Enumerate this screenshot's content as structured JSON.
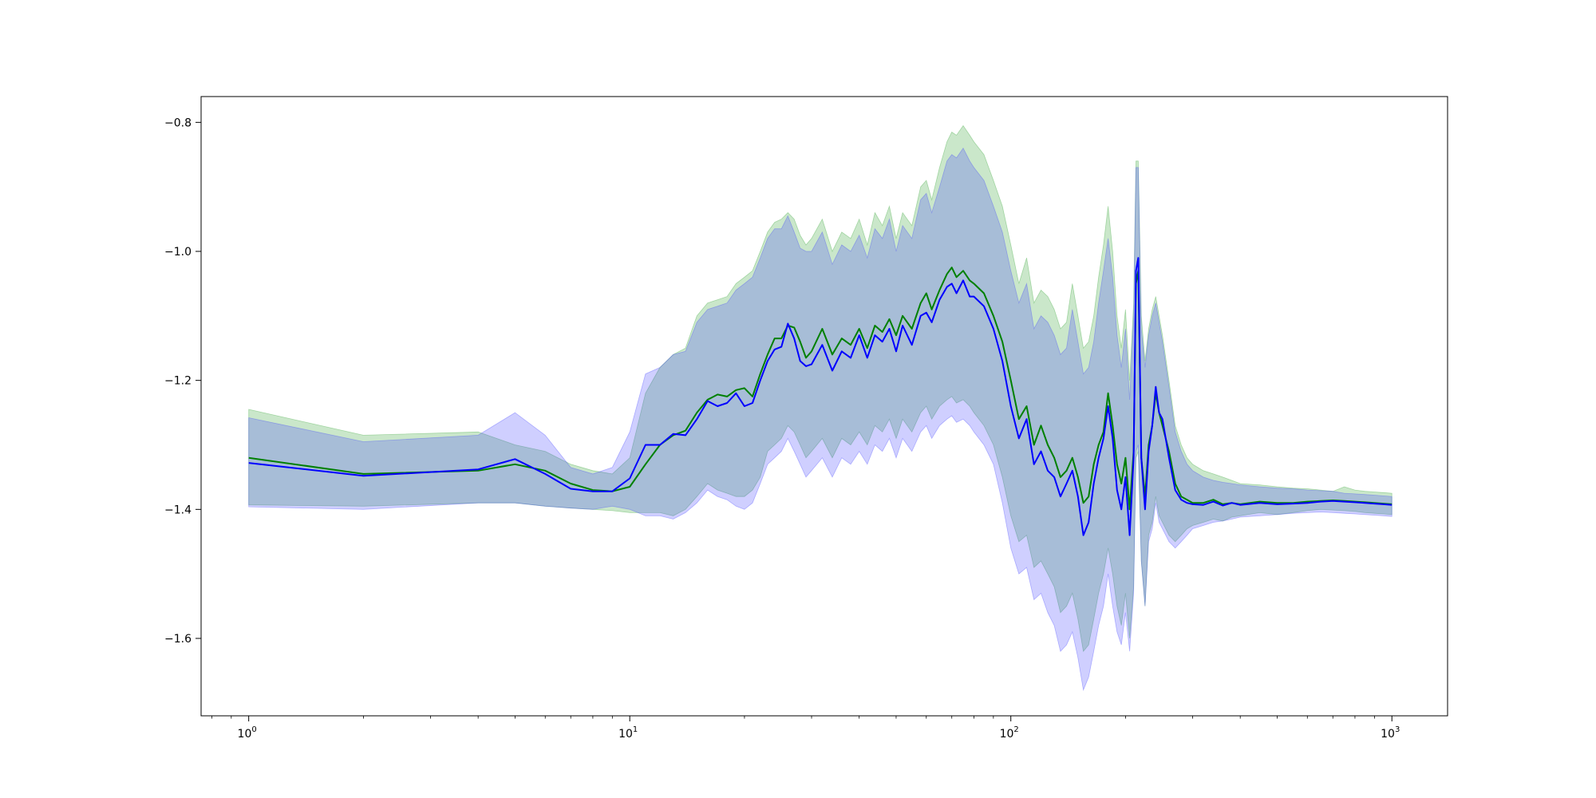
{
  "chart_data": {
    "type": "line",
    "title": "",
    "xlabel": "",
    "ylabel": "",
    "xscale": "log",
    "xlim": [
      0.75,
      1400
    ],
    "ylim": [
      -1.72,
      -0.76
    ],
    "grid": false,
    "x_ticks": [
      {
        "value": 1,
        "base": "10",
        "exp": "0"
      },
      {
        "value": 10,
        "base": "10",
        "exp": "1"
      },
      {
        "value": 100,
        "base": "10",
        "exp": "2"
      },
      {
        "value": 1000,
        "base": "10",
        "exp": "3"
      }
    ],
    "y_ticks": [
      {
        "value": -1.6,
        "label": "−1.6"
      },
      {
        "value": -1.4,
        "label": "−1.4"
      },
      {
        "value": -1.2,
        "label": "−1.2"
      },
      {
        "value": -1.0,
        "label": "−1.0"
      },
      {
        "value": -0.8,
        "label": "−0.8"
      }
    ],
    "colors": {
      "green_line": "#008000",
      "green_band": "#2ca02c",
      "blue_line": "#0000ff",
      "blue_band": "#4040ff",
      "band_opacity": 0.25
    },
    "series": [
      {
        "color_key": "green",
        "x": [
          1,
          2,
          4,
          5,
          6,
          7,
          8,
          9,
          10,
          11,
          12,
          13,
          14,
          15,
          16,
          17,
          18,
          19,
          20,
          21,
          22,
          23,
          24,
          25,
          26,
          27,
          28,
          29,
          30,
          32,
          34,
          36,
          38,
          40,
          42,
          44,
          46,
          48,
          50,
          52,
          55,
          58,
          60,
          62,
          65,
          68,
          70,
          72,
          75,
          78,
          80,
          85,
          90,
          95,
          100,
          105,
          110,
          115,
          120,
          125,
          130,
          135,
          140,
          145,
          150,
          155,
          160,
          165,
          170,
          175,
          180,
          185,
          190,
          195,
          200,
          205,
          210,
          213,
          216,
          220,
          225,
          230,
          235,
          240,
          245,
          250,
          260,
          270,
          280,
          290,
          300,
          320,
          340,
          360,
          380,
          400,
          450,
          500,
          550,
          600,
          650,
          700,
          750,
          800,
          850,
          900,
          950,
          1000
        ],
        "y": [
          -1.32,
          -1.345,
          -1.34,
          -1.33,
          -1.34,
          -1.36,
          -1.37,
          -1.372,
          -1.365,
          -1.33,
          -1.3,
          -1.285,
          -1.278,
          -1.25,
          -1.23,
          -1.222,
          -1.225,
          -1.215,
          -1.212,
          -1.225,
          -1.19,
          -1.16,
          -1.135,
          -1.135,
          -1.115,
          -1.118,
          -1.14,
          -1.165,
          -1.155,
          -1.12,
          -1.16,
          -1.135,
          -1.145,
          -1.12,
          -1.15,
          -1.115,
          -1.125,
          -1.105,
          -1.13,
          -1.1,
          -1.12,
          -1.08,
          -1.065,
          -1.09,
          -1.06,
          -1.035,
          -1.025,
          -1.04,
          -1.03,
          -1.045,
          -1.05,
          -1.065,
          -1.1,
          -1.14,
          -1.2,
          -1.26,
          -1.24,
          -1.3,
          -1.27,
          -1.3,
          -1.32,
          -1.35,
          -1.34,
          -1.32,
          -1.35,
          -1.39,
          -1.38,
          -1.33,
          -1.3,
          -1.28,
          -1.22,
          -1.27,
          -1.33,
          -1.36,
          -1.32,
          -1.4,
          -1.31,
          -1.05,
          -1.03,
          -1.32,
          -1.38,
          -1.3,
          -1.27,
          -1.22,
          -1.25,
          -1.27,
          -1.31,
          -1.36,
          -1.38,
          -1.385,
          -1.39,
          -1.39,
          -1.385,
          -1.392,
          -1.39,
          -1.392,
          -1.388,
          -1.39,
          -1.39,
          -1.388,
          -1.387,
          -1.386,
          -1.387,
          -1.388,
          -1.389,
          -1.39,
          -1.391,
          -1.392
        ]
      },
      {
        "color_key": "blue",
        "x": [
          1,
          2,
          4,
          5,
          6,
          7,
          8,
          9,
          10,
          11,
          12,
          13,
          14,
          15,
          16,
          17,
          18,
          19,
          20,
          21,
          22,
          23,
          24,
          25,
          26,
          27,
          28,
          29,
          30,
          32,
          34,
          36,
          38,
          40,
          42,
          44,
          46,
          48,
          50,
          52,
          55,
          58,
          60,
          62,
          65,
          68,
          70,
          72,
          75,
          78,
          80,
          85,
          90,
          95,
          100,
          105,
          110,
          115,
          120,
          125,
          130,
          135,
          140,
          145,
          150,
          155,
          160,
          165,
          170,
          175,
          180,
          185,
          190,
          195,
          200,
          205,
          210,
          213,
          216,
          220,
          225,
          230,
          235,
          240,
          245,
          250,
          260,
          270,
          280,
          290,
          300,
          320,
          340,
          360,
          380,
          400,
          450,
          500,
          550,
          600,
          650,
          700,
          750,
          800,
          850,
          900,
          950,
          1000
        ],
        "y": [
          -1.328,
          -1.348,
          -1.338,
          -1.322,
          -1.345,
          -1.368,
          -1.372,
          -1.372,
          -1.352,
          -1.3,
          -1.3,
          -1.283,
          -1.285,
          -1.26,
          -1.232,
          -1.24,
          -1.235,
          -1.22,
          -1.24,
          -1.235,
          -1.2,
          -1.17,
          -1.152,
          -1.148,
          -1.112,
          -1.135,
          -1.17,
          -1.178,
          -1.175,
          -1.145,
          -1.185,
          -1.155,
          -1.165,
          -1.13,
          -1.165,
          -1.13,
          -1.14,
          -1.12,
          -1.155,
          -1.115,
          -1.145,
          -1.1,
          -1.095,
          -1.11,
          -1.075,
          -1.055,
          -1.05,
          -1.065,
          -1.045,
          -1.07,
          -1.07,
          -1.085,
          -1.12,
          -1.17,
          -1.24,
          -1.29,
          -1.26,
          -1.33,
          -1.31,
          -1.34,
          -1.35,
          -1.38,
          -1.36,
          -1.34,
          -1.38,
          -1.44,
          -1.42,
          -1.36,
          -1.32,
          -1.29,
          -1.24,
          -1.29,
          -1.37,
          -1.4,
          -1.35,
          -1.44,
          -1.32,
          -1.03,
          -1.01,
          -1.32,
          -1.4,
          -1.31,
          -1.27,
          -1.21,
          -1.25,
          -1.26,
          -1.32,
          -1.37,
          -1.385,
          -1.39,
          -1.392,
          -1.393,
          -1.388,
          -1.394,
          -1.39,
          -1.393,
          -1.39,
          -1.392,
          -1.391,
          -1.39,
          -1.388,
          -1.387,
          -1.388,
          -1.389,
          -1.39,
          -1.391,
          -1.392,
          -1.393
        ]
      },
      {
        "color_key": "green_band",
        "x": [
          1,
          2,
          4,
          5,
          6,
          7,
          8,
          9,
          10,
          11,
          12,
          13,
          14,
          15,
          16,
          17,
          18,
          19,
          20,
          21,
          22,
          23,
          24,
          25,
          26,
          27,
          28,
          29,
          30,
          32,
          34,
          36,
          38,
          40,
          42,
          44,
          46,
          48,
          50,
          52,
          55,
          58,
          60,
          62,
          65,
          68,
          70,
          72,
          75,
          78,
          80,
          85,
          90,
          95,
          100,
          105,
          110,
          115,
          120,
          125,
          130,
          135,
          140,
          145,
          150,
          155,
          160,
          165,
          170,
          175,
          180,
          185,
          190,
          195,
          200,
          205,
          210,
          213,
          216,
          220,
          225,
          230,
          235,
          240,
          245,
          250,
          260,
          270,
          280,
          290,
          300,
          320,
          340,
          360,
          380,
          400,
          450,
          500,
          550,
          600,
          650,
          700,
          750,
          800,
          850,
          900,
          950,
          1000
        ],
        "upper": [
          -1.245,
          -1.285,
          -1.28,
          -1.3,
          -1.31,
          -1.33,
          -1.34,
          -1.345,
          -1.32,
          -1.22,
          -1.18,
          -1.16,
          -1.15,
          -1.1,
          -1.08,
          -1.075,
          -1.07,
          -1.05,
          -1.04,
          -1.03,
          -1.0,
          -0.97,
          -0.955,
          -0.95,
          -0.94,
          -0.95,
          -0.975,
          -0.99,
          -0.98,
          -0.95,
          -1.0,
          -0.97,
          -0.98,
          -0.95,
          -0.99,
          -0.94,
          -0.96,
          -0.93,
          -0.98,
          -0.94,
          -0.96,
          -0.9,
          -0.89,
          -0.92,
          -0.87,
          -0.83,
          -0.815,
          -0.82,
          -0.805,
          -0.82,
          -0.83,
          -0.85,
          -0.89,
          -0.93,
          -0.99,
          -1.05,
          -1.01,
          -1.08,
          -1.06,
          -1.07,
          -1.09,
          -1.12,
          -1.11,
          -1.05,
          -1.1,
          -1.15,
          -1.14,
          -1.1,
          -1.04,
          -0.99,
          -0.93,
          -1.0,
          -1.1,
          -1.15,
          -1.09,
          -1.2,
          -1.08,
          -0.86,
          -0.86,
          -1.1,
          -1.17,
          -1.12,
          -1.09,
          -1.07,
          -1.1,
          -1.13,
          -1.2,
          -1.27,
          -1.3,
          -1.32,
          -1.33,
          -1.34,
          -1.345,
          -1.35,
          -1.355,
          -1.36,
          -1.362,
          -1.365,
          -1.367,
          -1.368,
          -1.37,
          -1.372,
          -1.365,
          -1.37,
          -1.372,
          -1.373,
          -1.374,
          -1.375
        ],
        "lower": [
          -1.393,
          -1.395,
          -1.39,
          -1.39,
          -1.395,
          -1.398,
          -1.4,
          -1.402,
          -1.405,
          -1.405,
          -1.405,
          -1.41,
          -1.4,
          -1.38,
          -1.36,
          -1.37,
          -1.375,
          -1.38,
          -1.38,
          -1.37,
          -1.35,
          -1.31,
          -1.3,
          -1.29,
          -1.27,
          -1.28,
          -1.3,
          -1.32,
          -1.31,
          -1.29,
          -1.32,
          -1.29,
          -1.3,
          -1.28,
          -1.3,
          -1.27,
          -1.28,
          -1.26,
          -1.29,
          -1.26,
          -1.28,
          -1.25,
          -1.24,
          -1.26,
          -1.24,
          -1.23,
          -1.225,
          -1.235,
          -1.23,
          -1.24,
          -1.25,
          -1.27,
          -1.3,
          -1.35,
          -1.41,
          -1.45,
          -1.44,
          -1.49,
          -1.48,
          -1.5,
          -1.52,
          -1.56,
          -1.55,
          -1.53,
          -1.57,
          -1.62,
          -1.61,
          -1.57,
          -1.53,
          -1.5,
          -1.46,
          -1.5,
          -1.55,
          -1.58,
          -1.53,
          -1.6,
          -1.52,
          -1.32,
          -1.31,
          -1.48,
          -1.55,
          -1.44,
          -1.42,
          -1.38,
          -1.41,
          -1.42,
          -1.44,
          -1.45,
          -1.44,
          -1.43,
          -1.425,
          -1.42,
          -1.415,
          -1.418,
          -1.412,
          -1.41,
          -1.405,
          -1.408,
          -1.405,
          -1.402,
          -1.4,
          -1.401,
          -1.402,
          -1.403,
          -1.405,
          -1.406,
          -1.407,
          -1.408
        ]
      },
      {
        "color_key": "blue_band",
        "x": [
          1,
          2,
          4,
          5,
          6,
          7,
          8,
          9,
          10,
          11,
          12,
          13,
          14,
          15,
          16,
          17,
          18,
          19,
          20,
          21,
          22,
          23,
          24,
          25,
          26,
          27,
          28,
          29,
          30,
          32,
          34,
          36,
          38,
          40,
          42,
          44,
          46,
          48,
          50,
          52,
          55,
          58,
          60,
          62,
          65,
          68,
          70,
          72,
          75,
          78,
          80,
          85,
          90,
          95,
          100,
          105,
          110,
          115,
          120,
          125,
          130,
          135,
          140,
          145,
          150,
          155,
          160,
          165,
          170,
          175,
          180,
          185,
          190,
          195,
          200,
          205,
          210,
          213,
          216,
          220,
          225,
          230,
          235,
          240,
          245,
          250,
          260,
          270,
          280,
          290,
          300,
          320,
          340,
          360,
          380,
          400,
          450,
          500,
          550,
          600,
          650,
          700,
          750,
          800,
          850,
          900,
          950,
          1000
        ],
        "upper": [
          -1.258,
          -1.295,
          -1.285,
          -1.25,
          -1.285,
          -1.335,
          -1.345,
          -1.335,
          -1.28,
          -1.19,
          -1.18,
          -1.16,
          -1.155,
          -1.11,
          -1.09,
          -1.085,
          -1.08,
          -1.06,
          -1.05,
          -1.04,
          -1.01,
          -0.98,
          -0.965,
          -0.965,
          -0.945,
          -0.97,
          -0.995,
          -1.0,
          -1.0,
          -0.97,
          -1.02,
          -0.99,
          -1.0,
          -0.975,
          -1.01,
          -0.965,
          -0.98,
          -0.95,
          -1.0,
          -0.96,
          -0.98,
          -0.92,
          -0.91,
          -0.94,
          -0.9,
          -0.86,
          -0.85,
          -0.855,
          -0.84,
          -0.86,
          -0.87,
          -0.89,
          -0.93,
          -0.97,
          -1.03,
          -1.08,
          -1.05,
          -1.12,
          -1.1,
          -1.11,
          -1.13,
          -1.16,
          -1.15,
          -1.09,
          -1.14,
          -1.19,
          -1.18,
          -1.14,
          -1.08,
          -1.03,
          -0.98,
          -1.04,
          -1.13,
          -1.18,
          -1.12,
          -1.23,
          -1.1,
          -0.87,
          -0.87,
          -1.12,
          -1.18,
          -1.13,
          -1.1,
          -1.08,
          -1.11,
          -1.14,
          -1.21,
          -1.28,
          -1.31,
          -1.33,
          -1.34,
          -1.35,
          -1.355,
          -1.358,
          -1.36,
          -1.362,
          -1.365,
          -1.367,
          -1.368,
          -1.37,
          -1.371,
          -1.372,
          -1.375,
          -1.376,
          -1.377,
          -1.378,
          -1.379,
          -1.38
        ],
        "lower": [
          -1.396,
          -1.4,
          -1.39,
          -1.39,
          -1.395,
          -1.398,
          -1.4,
          -1.395,
          -1.4,
          -1.41,
          -1.41,
          -1.415,
          -1.405,
          -1.39,
          -1.37,
          -1.38,
          -1.385,
          -1.395,
          -1.4,
          -1.39,
          -1.36,
          -1.33,
          -1.32,
          -1.31,
          -1.29,
          -1.31,
          -1.33,
          -1.35,
          -1.34,
          -1.32,
          -1.35,
          -1.32,
          -1.33,
          -1.31,
          -1.33,
          -1.3,
          -1.31,
          -1.29,
          -1.32,
          -1.29,
          -1.31,
          -1.28,
          -1.27,
          -1.29,
          -1.27,
          -1.26,
          -1.255,
          -1.265,
          -1.26,
          -1.27,
          -1.28,
          -1.3,
          -1.33,
          -1.39,
          -1.46,
          -1.5,
          -1.49,
          -1.54,
          -1.53,
          -1.56,
          -1.58,
          -1.62,
          -1.61,
          -1.59,
          -1.63,
          -1.68,
          -1.66,
          -1.62,
          -1.58,
          -1.55,
          -1.5,
          -1.55,
          -1.59,
          -1.61,
          -1.56,
          -1.62,
          -1.53,
          -1.31,
          -1.3,
          -1.48,
          -1.55,
          -1.45,
          -1.43,
          -1.39,
          -1.42,
          -1.43,
          -1.45,
          -1.46,
          -1.45,
          -1.44,
          -1.43,
          -1.425,
          -1.42,
          -1.418,
          -1.415,
          -1.412,
          -1.41,
          -1.408,
          -1.406,
          -1.405,
          -1.404,
          -1.405,
          -1.406,
          -1.407,
          -1.408,
          -1.409,
          -1.41,
          -1.411
        ]
      }
    ]
  }
}
